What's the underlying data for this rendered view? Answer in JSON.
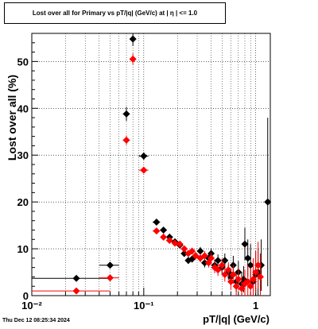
{
  "chart_data": {
    "type": "scatter",
    "title": "Lost over all for Primary vs pT/|q| (GeV/c) at |  η  | <= 1.0",
    "xlabel": "pT/|q| (GeV/c)",
    "ylabel": "Lost over all (%)",
    "xscale": "log",
    "xlim": [
      0.01,
      1.35
    ],
    "ylim": [
      0,
      56
    ],
    "grid": true,
    "x_tick_labels": [
      "10⁻²",
      "10⁻¹",
      "1"
    ],
    "y_tick_labels": [
      "0",
      "10",
      "20",
      "30",
      "40",
      "50"
    ],
    "series": [
      {
        "color": "#000000",
        "marker": "diamond",
        "points": [
          {
            "x": 0.025,
            "y": 3.7,
            "xlo": 0.01,
            "xhi": 0.05,
            "ey": 0.5
          },
          {
            "x": 0.05,
            "y": 6.5,
            "xlo": 0.04,
            "xhi": 0.06,
            "ey": 0.5
          },
          {
            "x": 0.07,
            "y": 38.8,
            "xlo": 0.065,
            "xhi": 0.075,
            "ey": 1.5
          },
          {
            "x": 0.08,
            "y": 54.8,
            "xlo": 0.075,
            "xhi": 0.085,
            "ey": 1.5
          },
          {
            "x": 0.1,
            "y": 29.8,
            "xlo": 0.09,
            "xhi": 0.11,
            "ey": 0.8
          },
          {
            "x": 0.13,
            "y": 15.7,
            "xlo": 0.12,
            "xhi": 0.14,
            "ey": 0.5
          },
          {
            "x": 0.15,
            "y": 14.0,
            "xlo": 0.14,
            "xhi": 0.16,
            "ey": 0.5
          },
          {
            "x": 0.17,
            "y": 12.5,
            "ey": 0.5
          },
          {
            "x": 0.19,
            "y": 11.5,
            "ey": 0.5
          },
          {
            "x": 0.21,
            "y": 10.8,
            "ey": 0.6
          },
          {
            "x": 0.23,
            "y": 9.0,
            "ey": 0.6
          },
          {
            "x": 0.25,
            "y": 7.5,
            "ey": 0.7
          },
          {
            "x": 0.27,
            "y": 7.8,
            "ey": 0.7
          },
          {
            "x": 0.29,
            "y": 8.5,
            "ey": 0.8
          },
          {
            "x": 0.32,
            "y": 9.5,
            "ey": 0.9
          },
          {
            "x": 0.35,
            "y": 7.0,
            "ey": 1.0
          },
          {
            "x": 0.38,
            "y": 8.0,
            "ey": 1.0
          },
          {
            "x": 0.4,
            "y": 9.0,
            "ey": 1.1
          },
          {
            "x": 0.43,
            "y": 6.5,
            "ey": 1.2
          },
          {
            "x": 0.46,
            "y": 7.5,
            "ey": 1.3
          },
          {
            "x": 0.5,
            "y": 6.0,
            "ey": 1.4
          },
          {
            "x": 0.53,
            "y": 7.5,
            "ey": 1.5
          },
          {
            "x": 0.57,
            "y": 5.0,
            "ey": 1.6
          },
          {
            "x": 0.6,
            "y": 4.0,
            "ey": 1.8
          },
          {
            "x": 0.63,
            "y": 6.5,
            "ey": 2.0
          },
          {
            "x": 0.67,
            "y": 3.0,
            "ey": 2.2
          },
          {
            "x": 0.7,
            "y": 5.0,
            "ey": 2.4
          },
          {
            "x": 0.75,
            "y": 2.5,
            "ey": 2.6
          },
          {
            "x": 0.78,
            "y": 3.5,
            "ey": 2.8
          },
          {
            "x": 0.8,
            "y": 11.0,
            "ey": 3.5
          },
          {
            "x": 0.85,
            "y": 8.0,
            "ey": 4.0
          },
          {
            "x": 0.9,
            "y": 6.5,
            "ey": 4.5
          },
          {
            "x": 0.95,
            "y": 3.0,
            "ey": 4.5
          },
          {
            "x": 1.0,
            "y": 4.5,
            "ey": 5.0
          },
          {
            "x": 1.05,
            "y": 5.0,
            "ey": 5.0
          },
          {
            "x": 1.12,
            "y": 6.5,
            "ey": 5.5
          },
          {
            "x": 1.28,
            "y": 20.0,
            "ey": 18.0
          }
        ]
      },
      {
        "color": "#ff0000",
        "marker": "diamond",
        "points": [
          {
            "x": 0.025,
            "y": 1.0,
            "xlo": 0.01,
            "xhi": 0.05,
            "ey": 0.3
          },
          {
            "x": 0.05,
            "y": 3.8,
            "xlo": 0.04,
            "xhi": 0.06,
            "ey": 0.4
          },
          {
            "x": 0.07,
            "y": 33.2,
            "xlo": 0.065,
            "xhi": 0.075,
            "ey": 1.0
          },
          {
            "x": 0.08,
            "y": 50.5,
            "xlo": 0.075,
            "xhi": 0.085,
            "ey": 1.2
          },
          {
            "x": 0.1,
            "y": 26.8,
            "xlo": 0.09,
            "xhi": 0.11,
            "ey": 0.7
          },
          {
            "x": 0.13,
            "y": 13.8,
            "xlo": 0.12,
            "xhi": 0.14,
            "ey": 0.5
          },
          {
            "x": 0.15,
            "y": 12.5,
            "ey": 0.5
          },
          {
            "x": 0.17,
            "y": 11.8,
            "ey": 0.5
          },
          {
            "x": 0.19,
            "y": 11.2,
            "ey": 0.5
          },
          {
            "x": 0.21,
            "y": 11.0,
            "ey": 0.6
          },
          {
            "x": 0.23,
            "y": 10.0,
            "ey": 0.6
          },
          {
            "x": 0.25,
            "y": 9.0,
            "ey": 0.7
          },
          {
            "x": 0.27,
            "y": 9.5,
            "ey": 0.7
          },
          {
            "x": 0.29,
            "y": 8.5,
            "ey": 0.8
          },
          {
            "x": 0.32,
            "y": 8.0,
            "ey": 0.9
          },
          {
            "x": 0.35,
            "y": 8.5,
            "ey": 1.0
          },
          {
            "x": 0.38,
            "y": 7.0,
            "ey": 1.0
          },
          {
            "x": 0.4,
            "y": 8.0,
            "ey": 1.1
          },
          {
            "x": 0.43,
            "y": 6.0,
            "ey": 1.2
          },
          {
            "x": 0.46,
            "y": 5.5,
            "ey": 1.3
          },
          {
            "x": 0.5,
            "y": 6.5,
            "ey": 1.4
          },
          {
            "x": 0.53,
            "y": 4.5,
            "ey": 1.5
          },
          {
            "x": 0.57,
            "y": 5.5,
            "ey": 1.6
          },
          {
            "x": 0.6,
            "y": 3.0,
            "ey": 1.8
          },
          {
            "x": 0.63,
            "y": 4.5,
            "ey": 2.0
          },
          {
            "x": 0.67,
            "y": 2.0,
            "ey": 2.2
          },
          {
            "x": 0.7,
            "y": 3.5,
            "ey": 2.4
          },
          {
            "x": 0.75,
            "y": 1.5,
            "ey": 2.6
          },
          {
            "x": 0.8,
            "y": 2.5,
            "ey": 3.0
          },
          {
            "x": 0.85,
            "y": 3.0,
            "ey": 3.5
          },
          {
            "x": 0.9,
            "y": 2.0,
            "ey": 4.0
          },
          {
            "x": 0.95,
            "y": 3.5,
            "ey": 4.5
          },
          {
            "x": 1.0,
            "y": 5.0,
            "ey": 4.5
          },
          {
            "x": 1.05,
            "y": 6.5,
            "ey": 5.0
          },
          {
            "x": 1.1,
            "y": 4.0,
            "ey": 5.0
          }
        ]
      }
    ]
  },
  "footer": {
    "timestamp": "Thu Dec 12 08:25:34 2024"
  }
}
